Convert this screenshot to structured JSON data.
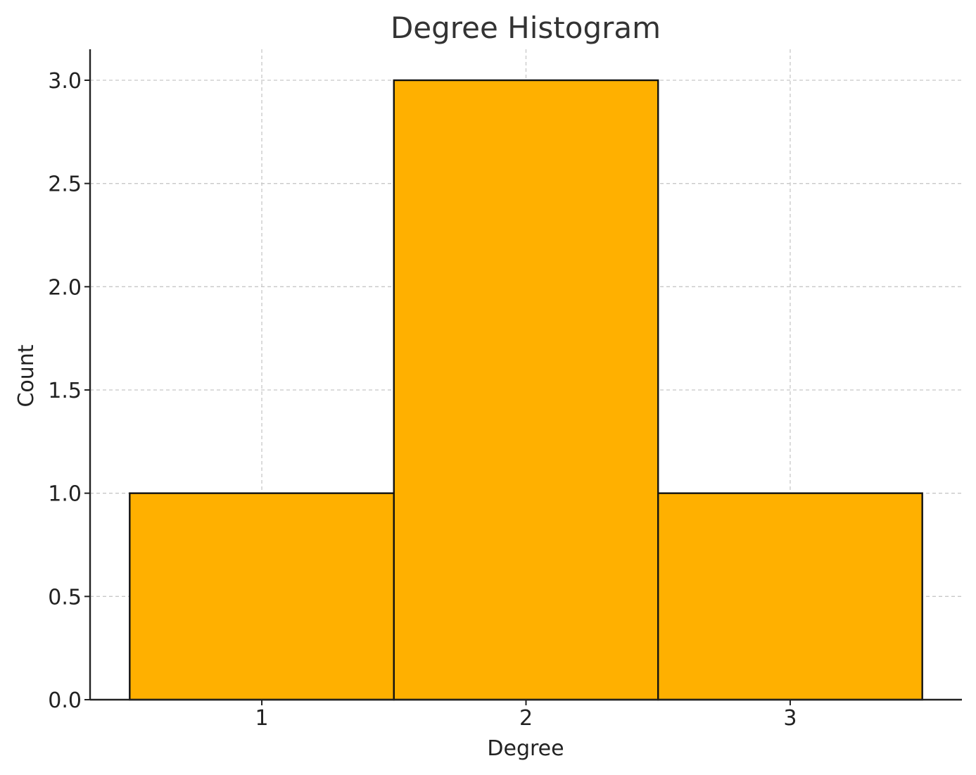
{
  "chart_data": {
    "type": "bar",
    "title": "Degree Histogram",
    "xlabel": "Degree",
    "ylabel": "Count",
    "categories": [
      "1",
      "2",
      "3"
    ],
    "x": [
      1,
      2,
      3
    ],
    "values": [
      1,
      3,
      1
    ],
    "xlim": [
      0.35,
      3.65
    ],
    "ylim": [
      0,
      3.15
    ],
    "yticks": [
      0.0,
      0.5,
      1.0,
      1.5,
      2.0,
      2.5,
      3.0
    ],
    "ytick_labels": [
      "0.0",
      "0.5",
      "1.0",
      "1.5",
      "2.0",
      "2.5",
      "3.0"
    ],
    "xticks": [
      1,
      2,
      3
    ],
    "xtick_labels": [
      "1",
      "2",
      "3"
    ],
    "grid": true,
    "bar_color": "#FFB000",
    "edge_color": "#111111"
  }
}
